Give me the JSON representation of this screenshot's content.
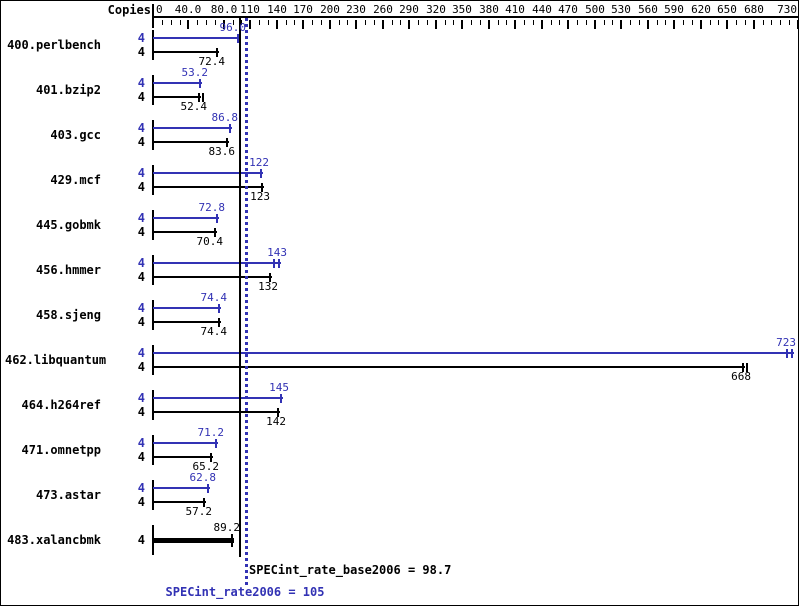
{
  "chart_data": {
    "type": "bar",
    "orientation": "horizontal",
    "copies_header": "Copies",
    "categories": [
      "400.perlbench",
      "401.bzip2",
      "403.gcc",
      "429.mcf",
      "445.gobmk",
      "456.hmmer",
      "458.sjeng",
      "462.libquantum",
      "464.h264ref",
      "471.omnetpp",
      "473.astar",
      "483.xalancbmk"
    ],
    "copies": [
      4,
      4,
      4,
      4,
      4,
      4,
      4,
      4,
      4,
      4,
      4,
      4
    ],
    "series": [
      {
        "name": "peak",
        "legend": "SPECint_rate2006",
        "color": "#3232b4",
        "values": [
          96.0,
          53.2,
          86.8,
          122,
          72.8,
          143,
          74.4,
          723,
          145,
          71.2,
          62.8,
          null
        ]
      },
      {
        "name": "base",
        "legend": "SPECint_rate_base2006",
        "color": "#000000",
        "values": [
          72.4,
          52.4,
          83.6,
          123,
          70.4,
          132,
          74.4,
          668,
          142,
          65.2,
          57.2,
          89.2
        ]
      }
    ],
    "xlim": [
      0,
      730
    ],
    "minor_tick_step": 10,
    "axis_tick_values": [
      0,
      40,
      80,
      110,
      140,
      170,
      200,
      230,
      260,
      290,
      320,
      350,
      380,
      410,
      440,
      470,
      500,
      530,
      560,
      590,
      620,
      650,
      680,
      730
    ],
    "axis_tick_labels": [
      "0",
      "40.0",
      "80.0",
      "110",
      "140",
      "170",
      "200",
      "230",
      "260",
      "290",
      "320",
      "350",
      "380",
      "410",
      "440",
      "470",
      "500",
      "530",
      "560",
      "590",
      "620",
      "650",
      "680",
      "730"
    ],
    "grid": false,
    "legend_position": "none",
    "reference_lines": [
      {
        "series": "base",
        "label": "SPECint_rate_base2006 = 98.7",
        "value": 98.7,
        "style": "solid",
        "color": "#000000"
      },
      {
        "series": "peak",
        "label": "SPECint_rate2006 = 105",
        "value": 105,
        "style": "dotted",
        "color": "#3232b4"
      }
    ],
    "extra_end_caps": {
      "peak": [
        5,
        7
      ],
      "base": [
        1,
        7
      ]
    }
  }
}
